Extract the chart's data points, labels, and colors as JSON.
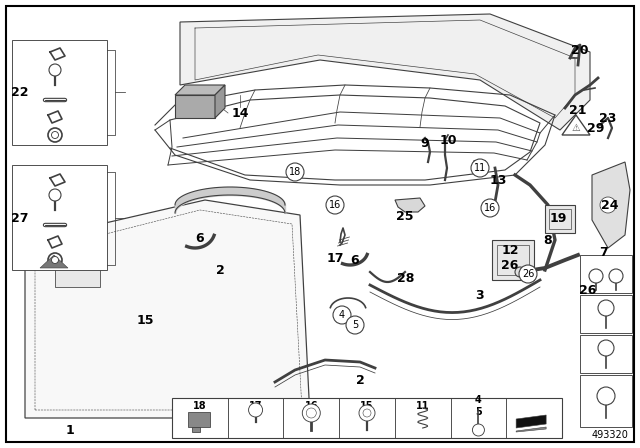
{
  "bg_color": "#ffffff",
  "border_color": "#000000",
  "line_color": "#404040",
  "diagram_number": "493320",
  "lw": 0.8,
  "border_lw": 1.5,
  "label_fontsize": 9,
  "small_fontsize": 7
}
